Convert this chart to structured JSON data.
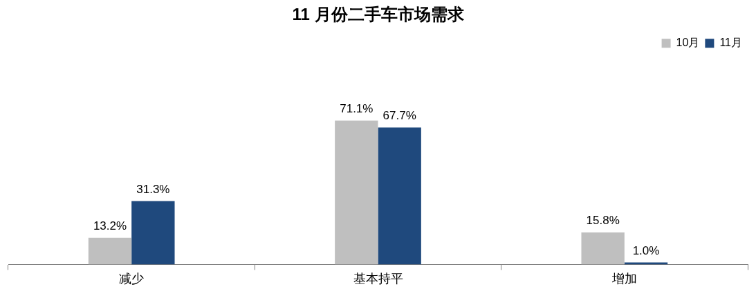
{
  "chart_data": {
    "type": "bar",
    "title": "11 月份二手车市场需求",
    "categories": [
      "减少",
      "基本持平",
      "增加"
    ],
    "series": [
      {
        "name": "10月",
        "color": "#bfbfbf",
        "values": [
          13.2,
          71.1,
          15.8
        ],
        "value_labels": [
          "13.2%",
          "71.1%",
          "15.8%"
        ]
      },
      {
        "name": "11月",
        "color": "#1f497d",
        "values": [
          31.3,
          67.7,
          1.0
        ],
        "value_labels": [
          "31.3%",
          "67.7%",
          "1.0%"
        ]
      }
    ],
    "tick_labels": "x",
    "legend": "top right",
    "grid": false
  }
}
